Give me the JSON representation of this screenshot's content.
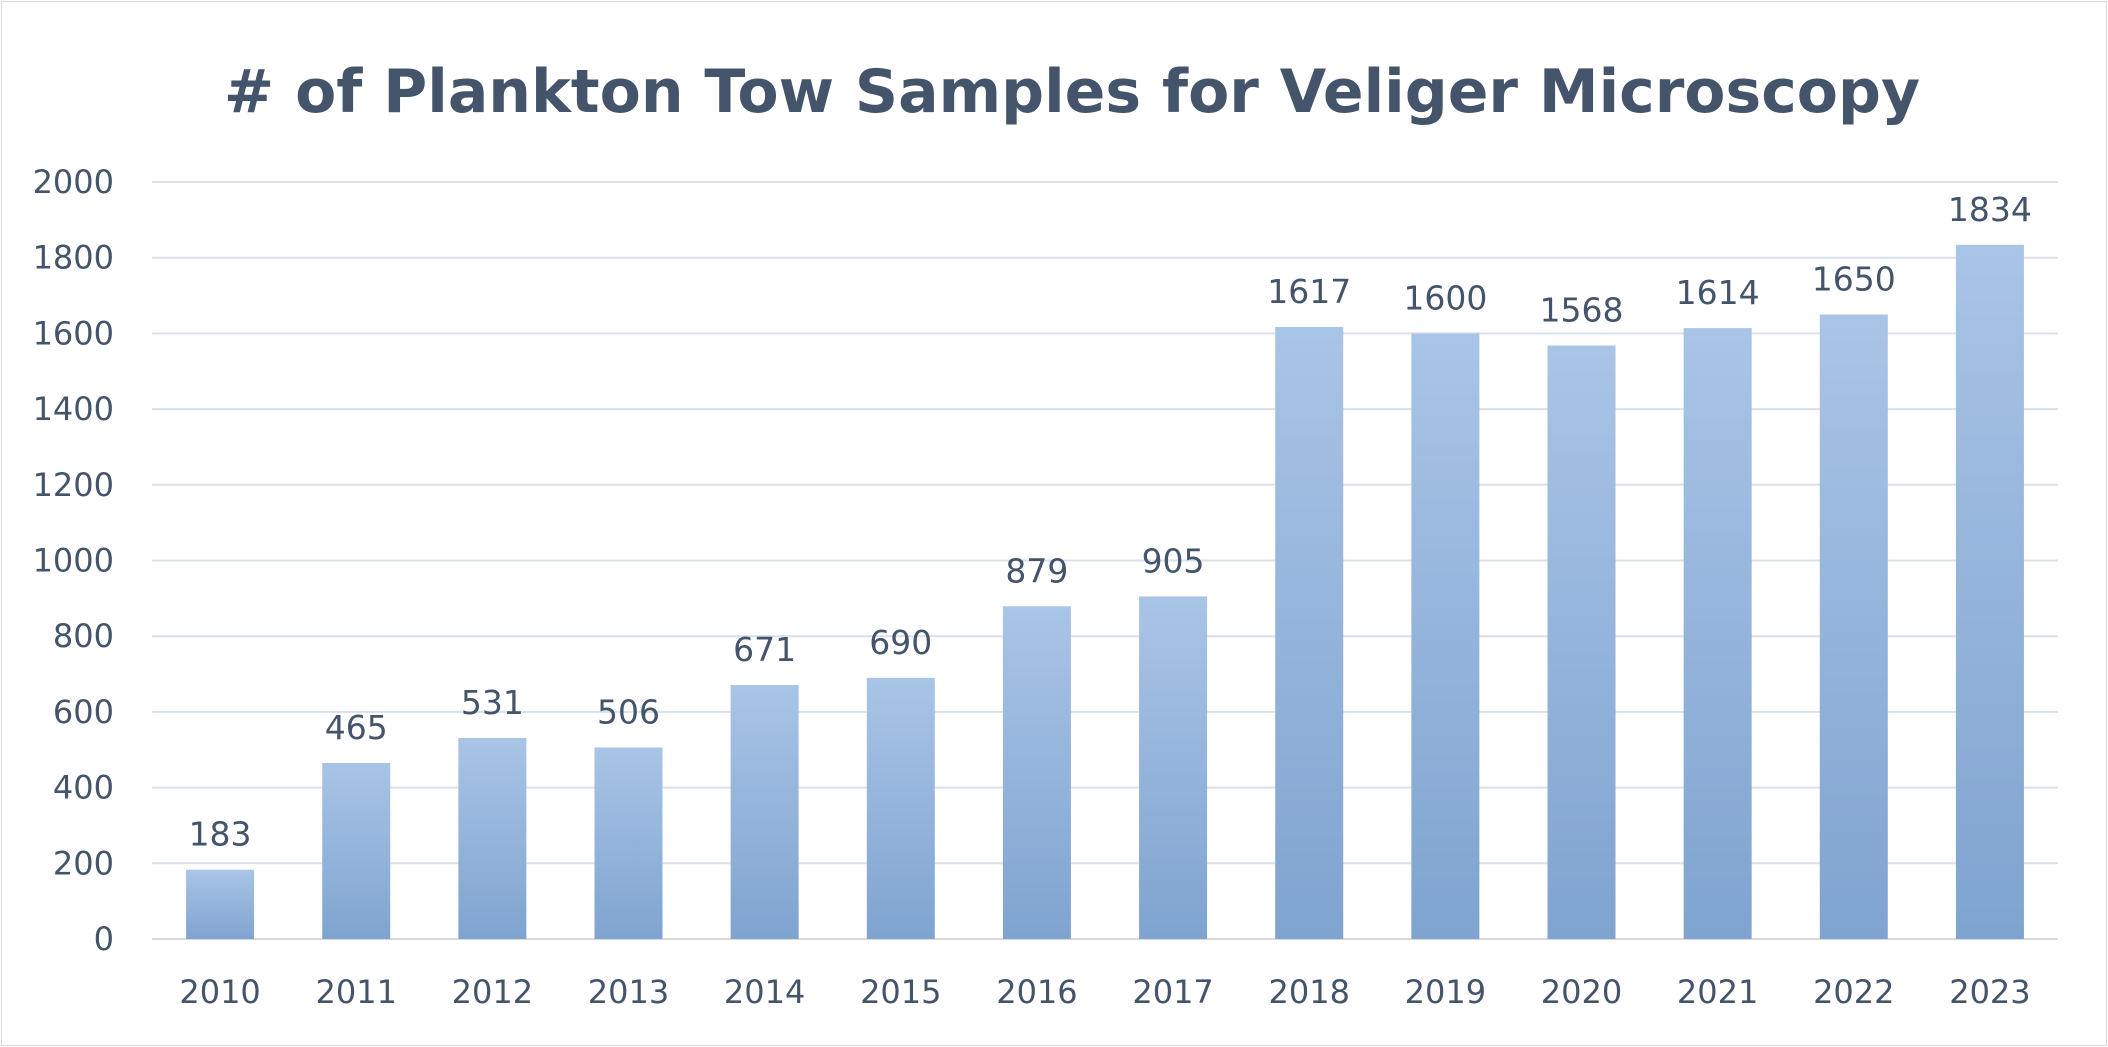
{
  "chart_data": {
    "type": "bar",
    "title": "# of Plankton Tow Samples for Veliger Microscopy",
    "categories": [
      "2010",
      "2011",
      "2012",
      "2013",
      "2014",
      "2015",
      "2016",
      "2017",
      "2018",
      "2019",
      "2020",
      "2021",
      "2022",
      "2023"
    ],
    "values": [
      183,
      465,
      531,
      506,
      671,
      690,
      879,
      905,
      1617,
      1600,
      1568,
      1614,
      1650,
      1834
    ],
    "xlabel": "",
    "ylabel": "",
    "ylim": [
      0,
      2000
    ],
    "yticks": [
      "0",
      "200",
      "400",
      "600",
      "800",
      "1000",
      "1200",
      "1400",
      "1600",
      "1800",
      "2000"
    ],
    "grid": true,
    "legend": "none",
    "data_labels": true,
    "colors": {
      "bar_top": "#a9c4e6",
      "bar_bottom": "#7fa4d0",
      "text": "#44546a",
      "gridline": "#d9e1ea"
    }
  }
}
